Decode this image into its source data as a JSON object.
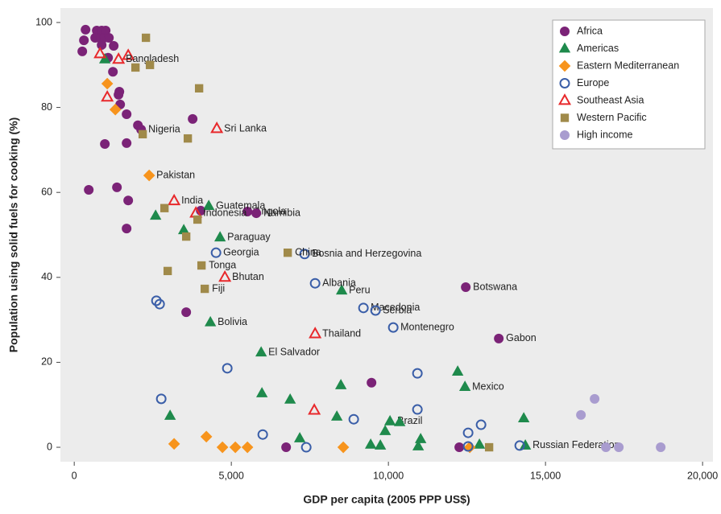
{
  "chart_data": {
    "type": "scatter",
    "xlabel": "GDP per capita (2005 PPP US$)",
    "ylabel": "Population using solid fuels for cooking (%)",
    "xlim": [
      -440,
      20330
    ],
    "ylim": [
      -3.4,
      103.4
    ],
    "xticks": [
      0,
      {
        "value": 5000,
        "label": "5,000"
      },
      {
        "value": 10000,
        "label": "10,000"
      },
      {
        "value": 15000,
        "label": "15,000"
      },
      {
        "value": 20000,
        "label": "20,000"
      }
    ],
    "yticks": [
      0,
      20,
      40,
      60,
      80,
      100
    ],
    "grid": false,
    "legend": "upper right",
    "series": [
      {
        "name": "Africa",
        "color": "#7b2377",
        "marker": "circle",
        "filled": true,
        "x": [
          360,
          308,
          256,
          718,
          872,
          1000,
          667,
          820,
          949,
          1103,
          872,
          1077,
          1256,
          1231,
          1436,
          1410,
          1462,
          1667,
          2026,
          2128,
          974,
          1667,
          3769,
          462,
          1359,
          1718,
          1667,
          4026,
          5513,
          5795,
          3564,
          12462,
          13513,
          9462,
          6744,
          12256
        ],
        "values": [
          98.3,
          95.8,
          93.2,
          98.1,
          98.1,
          98.1,
          96.4,
          96.4,
          96.4,
          96.4,
          94.7,
          91.7,
          94.5,
          88.4,
          83.7,
          83,
          80.7,
          78.4,
          75.8,
          74.8,
          71.4,
          71.6,
          77.3,
          60.6,
          61.2,
          58.1,
          51.5,
          55.7,
          55.5,
          55.1,
          31.8,
          37.7,
          25.6,
          15.2,
          0,
          0
        ],
        "labels": [
          null,
          null,
          null,
          null,
          null,
          null,
          null,
          null,
          null,
          null,
          null,
          null,
          null,
          null,
          null,
          null,
          null,
          null,
          null,
          "Nigeria",
          null,
          null,
          null,
          null,
          null,
          null,
          null,
          null,
          "Angola",
          "Namibia",
          null,
          "Botswana",
          "Gabon",
          null,
          null,
          null
        ]
      },
      {
        "name": "Americas",
        "color": "#1f8a4c",
        "marker": "triangle",
        "filled": true,
        "x": [
          974,
          2590,
          3487,
          4282,
          4641,
          8513,
          4333,
          5949,
          3051,
          5974,
          6872,
          8487,
          8359,
          7179,
          9436,
          9744,
          9897,
          10051,
          10359,
          11026,
          10949,
          12205,
          12436,
          12897,
          14308,
          14359
        ],
        "values": [
          91.3,
          54.5,
          51.1,
          56.8,
          49.4,
          36.9,
          29.4,
          22.3,
          7.4,
          12.7,
          11.2,
          14.6,
          7.2,
          2.1,
          0.6,
          0.4,
          3.8,
          6.1,
          5.9,
          1.9,
          0.2,
          17.8,
          14.2,
          0.6,
          6.8,
          0.4
        ],
        "labels": [
          null,
          null,
          null,
          "Guatemala",
          "Paraguay",
          "Peru",
          "Bolivia",
          "El Salvador",
          null,
          null,
          null,
          null,
          null,
          null,
          null,
          null,
          null,
          "Brazil",
          null,
          null,
          null,
          null,
          "Mexico",
          null,
          null,
          "Russian Federation"
        ]
      },
      {
        "name": "Eastern Mediterranean",
        "color": "#f7941d",
        "marker": "diamond",
        "filled": true,
        "x": [
          1051,
          1308,
          2385,
          3179,
          4205,
          4718,
          5128,
          5513,
          8564,
          12590
        ],
        "values": [
          85.6,
          79.5,
          64,
          0.8,
          2.5,
          0,
          0,
          0,
          0,
          0
        ],
        "labels": [
          null,
          null,
          "Pakistan",
          null,
          null,
          null,
          null,
          null,
          null,
          null
        ]
      },
      {
        "name": "Europe",
        "color": "#3a5ea8",
        "marker": "circle",
        "filled": false,
        "x": [
          4513,
          7333,
          7667,
          9205,
          9590,
          10154,
          2615,
          2718,
          2769,
          4872,
          6000,
          7385,
          8897,
          10923,
          10923,
          12538,
          12949,
          12538,
          14179
        ],
        "values": [
          45.8,
          45.5,
          38.6,
          32.8,
          32.2,
          28.2,
          34.5,
          33.7,
          11.4,
          18.6,
          3,
          0,
          6.6,
          17.4,
          8.9,
          3.4,
          5.3,
          0.2,
          0.4
        ],
        "labels": [
          "Georgia",
          "Bosnia and Herzegovina",
          "Albania",
          "Macedonia",
          "Serbia",
          "Montenegro",
          null,
          null,
          null,
          null,
          null,
          null,
          null,
          null,
          null,
          null,
          null,
          null,
          null
        ]
      },
      {
        "name": "Southeast Asia",
        "color": "#e8282b",
        "marker": "triangle",
        "filled": false,
        "x": [
          821,
          1718,
          1410,
          1051,
          4538,
          3179,
          3872,
          4795,
          7667,
          7641
        ],
        "values": [
          92.6,
          92.2,
          91.3,
          82.4,
          75,
          58,
          55.1,
          40,
          26.7,
          8.7
        ],
        "labels": [
          null,
          null,
          "Bangladesh",
          null,
          "Sri Lanka",
          "India",
          "Indonesia",
          "Bhutan",
          "Thailand",
          null
        ]
      },
      {
        "name": "Western Pacific",
        "color": "#a08a4a",
        "marker": "square",
        "filled": true,
        "x": [
          2282,
          2410,
          1949,
          3974,
          2179,
          3615,
          2872,
          3923,
          3564,
          6795,
          4051,
          2974,
          4154,
          13205
        ],
        "values": [
          96.4,
          90,
          89.4,
          84.5,
          73.7,
          72.7,
          56.3,
          53.6,
          49.6,
          45.8,
          42.8,
          41.5,
          37.3,
          0
        ],
        "labels": [
          null,
          null,
          null,
          null,
          null,
          null,
          null,
          null,
          null,
          "China",
          "Tonga",
          null,
          "Fiji",
          null
        ]
      },
      {
        "name": "High income",
        "color": "#a99ccf",
        "marker": "circle",
        "filled": true,
        "x": [
          16128,
          16564,
          16923,
          17333,
          18667
        ],
        "values": [
          7.6,
          11.4,
          0,
          0,
          0
        ],
        "labels": [
          null,
          null,
          null,
          null,
          null
        ]
      }
    ]
  }
}
